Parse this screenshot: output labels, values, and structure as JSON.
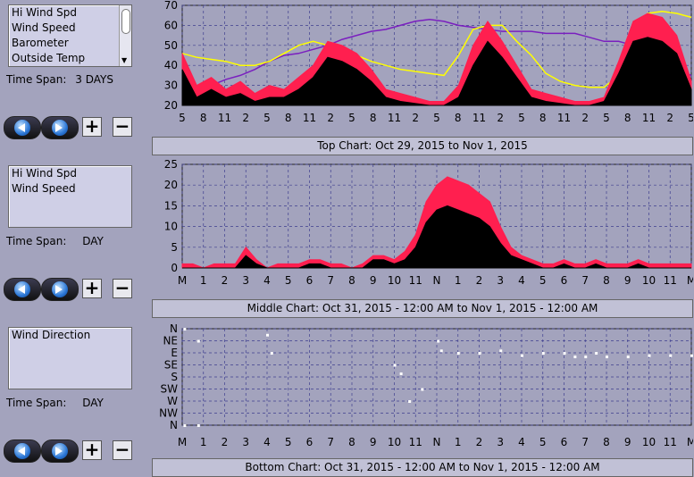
{
  "panels": [
    {
      "series_list": [
        "Hi Wind Spd",
        "Wind Speed",
        "Barometer",
        "Outside Temp"
      ],
      "time_span_label": "Time Span:",
      "time_span_value": "3 DAYS",
      "caption": "Top Chart:  Oct 29, 2015  to  Nov 1, 2015"
    },
    {
      "series_list": [
        "Hi Wind Spd",
        "Wind Speed"
      ],
      "time_span_label": "Time Span:",
      "time_span_value": "DAY",
      "caption": "Middle Chart:  Oct 31, 2015 - 12:00 AM  to  Nov 1, 2015 - 12:00 AM"
    },
    {
      "series_list": [
        "Wind Direction"
      ],
      "time_span_label": "Time Span:",
      "time_span_value": "DAY",
      "caption": "Bottom Chart:  Oct 31, 2015 - 12:00 AM  to  Nov 1, 2015 - 12:00 AM"
    }
  ],
  "buttons": {
    "prev": "previous",
    "next": "next",
    "plus": "+",
    "minus": "−"
  },
  "colors": {
    "hi_wind": "#ff1f4f",
    "wind": "#000000",
    "barometer": "#7a1fbf",
    "temp": "#ffff00",
    "direction": "#ffffff",
    "plot_bg": "#a3a3bd",
    "grid": "#3f3f8f"
  },
  "chart_data": [
    {
      "type": "line",
      "yticks": [
        "20",
        "30",
        "40",
        "50",
        "60",
        "70"
      ],
      "ylim": [
        20,
        70
      ],
      "xticks": [
        "5",
        "8",
        "11",
        "2",
        "5",
        "8",
        "11",
        "2",
        "5",
        "8",
        "11",
        "2",
        "5",
        "8",
        "11",
        "2",
        "5",
        "8",
        "11",
        "2",
        "5",
        "8",
        "11",
        "2",
        "5"
      ],
      "series": [
        {
          "key": "barometer",
          "values": [
            28,
            28,
            30,
            33,
            35,
            38,
            42,
            45,
            46,
            48,
            50,
            53,
            55,
            57,
            58,
            60,
            62,
            63,
            62,
            60,
            59,
            58,
            57,
            57,
            57,
            56,
            56,
            56,
            54,
            52,
            52,
            50,
            46,
            43,
            38,
            35
          ]
        },
        {
          "key": "temp",
          "values": [
            46,
            44,
            43,
            42,
            40,
            40,
            42,
            46,
            50,
            52,
            50,
            46,
            45,
            42,
            40,
            38,
            37,
            36,
            35,
            45,
            58,
            60,
            60,
            52,
            45,
            36,
            32,
            30,
            29,
            29,
            35,
            55,
            66,
            67,
            66,
            64
          ]
        },
        {
          "key": "hi_wind",
          "values": [
            46,
            30,
            34,
            28,
            32,
            26,
            30,
            28,
            34,
            40,
            52,
            50,
            46,
            38,
            28,
            26,
            24,
            22,
            22,
            30,
            50,
            62,
            52,
            40,
            28,
            26,
            24,
            22,
            22,
            24,
            42,
            62,
            66,
            64,
            55,
            32
          ]
        },
        {
          "key": "wind",
          "values": [
            38,
            24,
            28,
            24,
            26,
            22,
            24,
            24,
            28,
            34,
            44,
            42,
            38,
            32,
            24,
            22,
            21,
            20,
            20,
            24,
            40,
            52,
            44,
            34,
            24,
            22,
            21,
            20,
            20,
            22,
            36,
            52,
            54,
            52,
            46,
            28
          ]
        }
      ]
    },
    {
      "type": "line",
      "yticks": [
        "0",
        "5",
        "10",
        "15",
        "20",
        "25"
      ],
      "ylim": [
        0,
        25
      ],
      "xticks": [
        "M",
        "1",
        "2",
        "3",
        "4",
        "5",
        "6",
        "7",
        "8",
        "9",
        "10",
        "11",
        "N",
        "1",
        "2",
        "3",
        "4",
        "5",
        "6",
        "7",
        "8",
        "9",
        "10",
        "11",
        "M"
      ],
      "series": [
        {
          "key": "hi_wind",
          "values": [
            1,
            1,
            0,
            1,
            1,
            1,
            5,
            2,
            0,
            1,
            1,
            1,
            2,
            2,
            1,
            1,
            0,
            1,
            3,
            3,
            2,
            4,
            8,
            16,
            20,
            22,
            21,
            20,
            18,
            16,
            10,
            5,
            3,
            2,
            1,
            1,
            2,
            1,
            1,
            2,
            1,
            1,
            1,
            2,
            1,
            1,
            1,
            1,
            1
          ]
        },
        {
          "key": "wind",
          "values": [
            0,
            0,
            0,
            0,
            0,
            0,
            3,
            1,
            0,
            0,
            0,
            0,
            1,
            1,
            0,
            0,
            0,
            0,
            2,
            2,
            1,
            2,
            5,
            11,
            14,
            15,
            14,
            13,
            12,
            10,
            6,
            3,
            2,
            1,
            0,
            0,
            1,
            0,
            0,
            1,
            0,
            0,
            0,
            1,
            0,
            0,
            0,
            0,
            0
          ]
        }
      ]
    },
    {
      "type": "scatter",
      "yticks": [
        "N",
        "NW",
        "W",
        "SW",
        "S",
        "SE",
        "E",
        "NE",
        "N"
      ],
      "xticks": [
        "M",
        "1",
        "2",
        "3",
        "4",
        "5",
        "6",
        "7",
        "8",
        "9",
        "10",
        "11",
        "N",
        "1",
        "2",
        "3",
        "4",
        "5",
        "6",
        "7",
        "8",
        "9",
        "10",
        "11",
        "M"
      ],
      "series": [
        {
          "key": "direction",
          "points": [
            [
              0.1,
              8
            ],
            [
              0.1,
              0
            ],
            [
              0.75,
              7
            ],
            [
              0.75,
              0
            ],
            [
              4,
              7.5
            ],
            [
              4.2,
              6
            ],
            [
              10,
              5
            ],
            [
              10.3,
              4.3
            ],
            [
              10.7,
              2
            ],
            [
              11.3,
              3
            ],
            [
              12.05,
              7
            ],
            [
              12.2,
              6.2
            ],
            [
              13,
              6
            ],
            [
              14,
              6
            ],
            [
              15,
              6.2
            ],
            [
              16,
              5.8
            ],
            [
              17,
              6
            ],
            [
              18,
              6
            ],
            [
              18.5,
              5.7
            ],
            [
              19,
              5.7
            ],
            [
              19.5,
              6
            ],
            [
              20,
              5.7
            ],
            [
              21,
              5.7
            ],
            [
              22,
              5.8
            ],
            [
              23,
              5.8
            ],
            [
              24,
              5.8
            ]
          ]
        }
      ]
    }
  ]
}
